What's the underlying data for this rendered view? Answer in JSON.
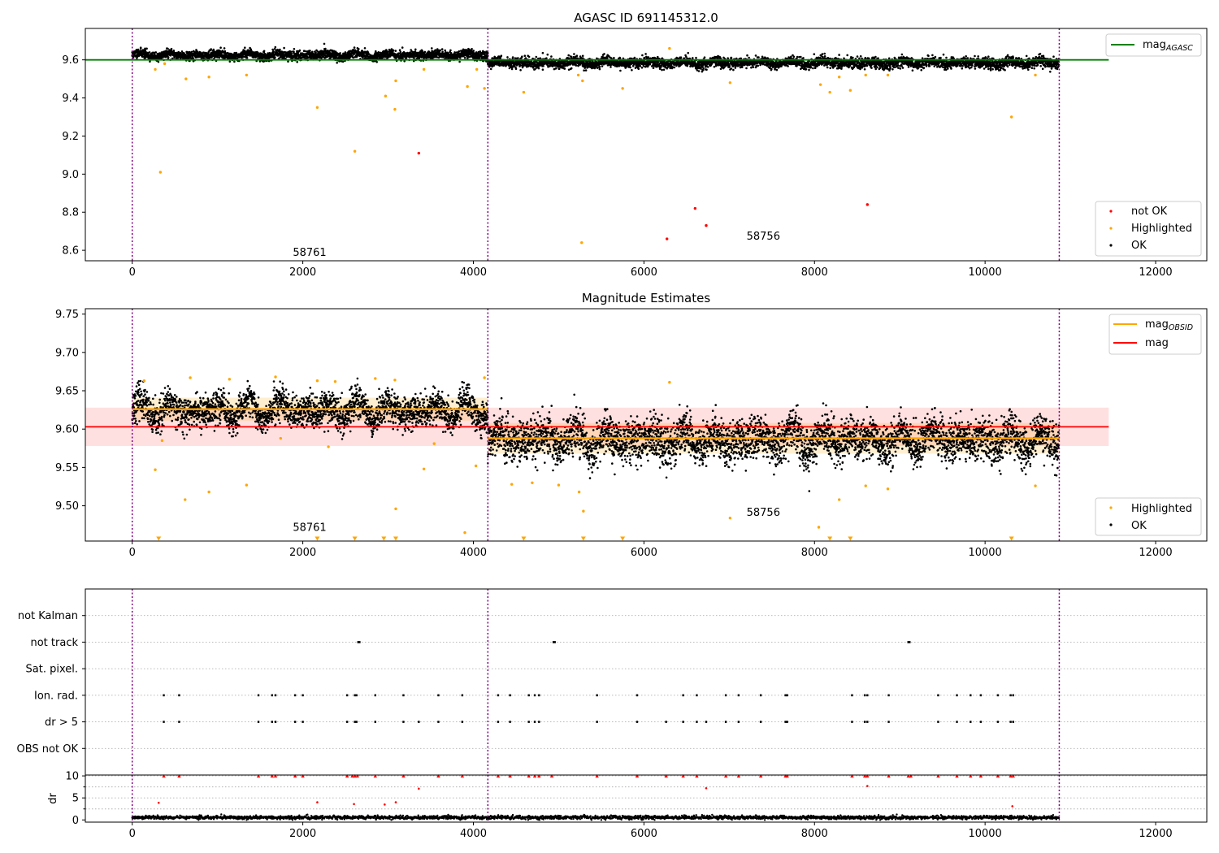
{
  "figure": {
    "background": "#ffffff"
  },
  "chart_data": [
    {
      "type": "scatter",
      "title": "AGASC ID 691145312.0",
      "xlabel": "",
      "ylabel": "",
      "xlim": [
        -550,
        12600
      ],
      "ylim": [
        8.545,
        9.765
      ],
      "x_ticks": [
        0,
        2000,
        4000,
        6000,
        8000,
        10000,
        12000
      ],
      "x_tick_labels": [
        "0",
        "2000",
        "4000",
        "6000",
        "8000",
        "10000",
        "12000"
      ],
      "y_ticks": [
        8.6,
        8.8,
        9.0,
        9.2,
        9.4,
        9.6
      ],
      "y_tick_labels": [
        "8.6",
        "8.8",
        "9.0",
        "9.2",
        "9.4",
        "9.6"
      ],
      "obs_boundaries": [
        0,
        4170,
        10870
      ],
      "obs_labels": [
        {
          "text": "58761",
          "x": 2080,
          "y": 8.57
        },
        {
          "text": "58756",
          "x": 7400,
          "y": 8.655
        }
      ],
      "reference_line": {
        "name": "mag",
        "subscript": "AGASC",
        "y": 9.6,
        "x_range": [
          -550,
          11450
        ],
        "color": "#008000"
      },
      "ok_bands": [
        {
          "x_range": [
            0,
            4170
          ],
          "center": 9.625,
          "spread": 0.026
        },
        {
          "x_range": [
            4170,
            10870
          ],
          "center": 9.585,
          "spread": 0.03
        }
      ],
      "highlighted": [
        {
          "x": 270,
          "y": 9.55
        },
        {
          "x": 330,
          "y": 9.01
        },
        {
          "x": 380,
          "y": 9.58
        },
        {
          "x": 630,
          "y": 9.5
        },
        {
          "x": 900,
          "y": 9.51
        },
        {
          "x": 1340,
          "y": 9.52
        },
        {
          "x": 2170,
          "y": 9.35
        },
        {
          "x": 2610,
          "y": 9.12
        },
        {
          "x": 2970,
          "y": 9.41
        },
        {
          "x": 3080,
          "y": 9.34
        },
        {
          "x": 3090,
          "y": 9.49
        },
        {
          "x": 3420,
          "y": 9.55
        },
        {
          "x": 3930,
          "y": 9.46
        },
        {
          "x": 4040,
          "y": 9.55
        },
        {
          "x": 4130,
          "y": 9.45
        },
        {
          "x": 4590,
          "y": 9.43
        },
        {
          "x": 5230,
          "y": 9.52
        },
        {
          "x": 5270,
          "y": 8.64
        },
        {
          "x": 5280,
          "y": 9.49
        },
        {
          "x": 5750,
          "y": 9.45
        },
        {
          "x": 6300,
          "y": 9.66
        },
        {
          "x": 7010,
          "y": 9.48
        },
        {
          "x": 8070,
          "y": 9.47
        },
        {
          "x": 8180,
          "y": 9.43
        },
        {
          "x": 8290,
          "y": 9.51
        },
        {
          "x": 8420,
          "y": 9.44
        },
        {
          "x": 8600,
          "y": 9.52
        },
        {
          "x": 8860,
          "y": 9.52
        },
        {
          "x": 10310,
          "y": 9.3
        },
        {
          "x": 10590,
          "y": 9.52
        }
      ],
      "not_ok": [
        {
          "x": 3360,
          "y": 9.11
        },
        {
          "x": 6270,
          "y": 8.66
        },
        {
          "x": 6600,
          "y": 8.82
        },
        {
          "x": 6730,
          "y": 8.73
        },
        {
          "x": 8620,
          "y": 8.84
        }
      ],
      "series": [
        {
          "name": "not OK",
          "color": "#ff0000"
        },
        {
          "name": "Highlighted",
          "color": "#ffa500"
        },
        {
          "name": "OK",
          "color": "#000000"
        }
      ],
      "legends": [
        {
          "placement": "top-right",
          "entries": [
            {
              "label": "mag",
              "subscript": "AGASC",
              "color": "#008000",
              "kind": "line"
            }
          ]
        },
        {
          "placement": "bottom-right",
          "entries": [
            {
              "label": "not OK",
              "color": "#ff0000",
              "kind": "marker"
            },
            {
              "label": "Highlighted",
              "color": "#ffa500",
              "kind": "marker"
            },
            {
              "label": "OK",
              "color": "#000000",
              "kind": "marker"
            }
          ]
        }
      ],
      "grid": false
    },
    {
      "type": "scatter",
      "title": "Magnitude Estimates",
      "xlabel": "",
      "ylabel": "",
      "xlim": [
        -550,
        12600
      ],
      "ylim": [
        9.454,
        9.757
      ],
      "x_ticks": [
        0,
        2000,
        4000,
        6000,
        8000,
        10000,
        12000
      ],
      "x_tick_labels": [
        "0",
        "2000",
        "4000",
        "6000",
        "8000",
        "10000",
        "12000"
      ],
      "y_ticks": [
        9.5,
        9.55,
        9.6,
        9.65,
        9.7,
        9.75
      ],
      "y_tick_labels": [
        "9.50",
        "9.55",
        "9.60",
        "9.65",
        "9.70",
        "9.75"
      ],
      "obs_boundaries": [
        0,
        4170,
        10870
      ],
      "obs_labels": [
        {
          "text": "58761",
          "x": 2080,
          "y": 9.467
        },
        {
          "text": "58756",
          "x": 7400,
          "y": 9.487
        }
      ],
      "mag_line": {
        "name": "mag",
        "y": 9.603,
        "band": [
          9.578,
          9.628
        ],
        "x_range": [
          -550,
          11450
        ],
        "color": "#ff0000",
        "band_color": "#ffe0e0"
      },
      "obsid_lines": [
        {
          "name": "mag",
          "subscript": "OBSID",
          "x_range": [
            0,
            4170
          ],
          "y": 9.626,
          "band": [
            9.611,
            9.641
          ],
          "color": "#ffa500"
        },
        {
          "name": "mag",
          "subscript": "OBSID",
          "x_range": [
            4170,
            10870
          ],
          "y": 9.588,
          "band": [
            9.568,
            9.608
          ],
          "color": "#ffa500"
        }
      ],
      "ok_bands": [
        {
          "x_range": [
            0,
            4170
          ],
          "center": 9.624,
          "spread": 0.024
        },
        {
          "x_range": [
            4170,
            10870
          ],
          "center": 9.586,
          "spread": 0.03
        }
      ],
      "highlighted": [
        {
          "x": 140,
          "y": 9.663
        },
        {
          "x": 270,
          "y": 9.547
        },
        {
          "x": 350,
          "y": 9.585
        },
        {
          "x": 620,
          "y": 9.508
        },
        {
          "x": 680,
          "y": 9.667
        },
        {
          "x": 900,
          "y": 9.518
        },
        {
          "x": 1140,
          "y": 9.665
        },
        {
          "x": 1340,
          "y": 9.527
        },
        {
          "x": 1680,
          "y": 9.668
        },
        {
          "x": 1740,
          "y": 9.588
        },
        {
          "x": 2170,
          "y": 9.663
        },
        {
          "x": 2300,
          "y": 9.577
        },
        {
          "x": 2380,
          "y": 9.662
        },
        {
          "x": 2850,
          "y": 9.666
        },
        {
          "x": 3080,
          "y": 9.664
        },
        {
          "x": 3090,
          "y": 9.496
        },
        {
          "x": 3420,
          "y": 9.548
        },
        {
          "x": 3540,
          "y": 9.581
        },
        {
          "x": 3900,
          "y": 9.465
        },
        {
          "x": 4030,
          "y": 9.552
        },
        {
          "x": 4130,
          "y": 9.667
        },
        {
          "x": 4450,
          "y": 9.528
        },
        {
          "x": 4690,
          "y": 9.53
        },
        {
          "x": 5000,
          "y": 9.527
        },
        {
          "x": 5240,
          "y": 9.518
        },
        {
          "x": 5290,
          "y": 9.493
        },
        {
          "x": 6300,
          "y": 9.661
        },
        {
          "x": 7010,
          "y": 9.484
        },
        {
          "x": 8050,
          "y": 9.472
        },
        {
          "x": 8290,
          "y": 9.508
        },
        {
          "x": 8600,
          "y": 9.526
        },
        {
          "x": 8860,
          "y": 9.522
        },
        {
          "x": 10590,
          "y": 9.526
        }
      ],
      "clipped_low": [
        310,
        2170,
        2610,
        2950,
        3090,
        4590,
        5290,
        5750,
        8180,
        8420,
        10310
      ],
      "series": [
        {
          "name": "Highlighted",
          "color": "#ffa500"
        },
        {
          "name": "OK",
          "color": "#000000"
        }
      ],
      "legends": [
        {
          "placement": "top-right",
          "entries": [
            {
              "label": "mag",
              "subscript": "OBSID",
              "color": "#ffa500",
              "kind": "line"
            },
            {
              "label": "mag",
              "subscript": "",
              "color": "#ff0000",
              "kind": "line"
            }
          ]
        },
        {
          "placement": "bottom-right",
          "entries": [
            {
              "label": "Highlighted",
              "color": "#ffa500",
              "kind": "marker"
            },
            {
              "label": "OK",
              "color": "#000000",
              "kind": "marker"
            }
          ]
        }
      ],
      "grid": false
    },
    {
      "type": "scatter",
      "title": "",
      "xlabel": "",
      "ylabel": "",
      "xlim": [
        -550,
        12600
      ],
      "categories": [
        "not Kalman",
        "not track",
        "Sat. pixel.",
        "Ion. rad.",
        "dr > 5",
        "OBS not OK"
      ],
      "obs_boundaries": [
        0,
        4170,
        10870
      ],
      "grid": true,
      "flags": {
        "not track": [
          2650,
          4940,
          9100
        ],
        "Ion. rad.": [
          370,
          550,
          1480,
          1640,
          1680,
          1910,
          2000,
          2520,
          2610,
          2630,
          2850,
          3180,
          3590,
          3870,
          4290,
          4430,
          4650,
          4720,
          4770,
          5450,
          5920,
          6460,
          6620,
          6960,
          7110,
          7370,
          7660,
          7680,
          8440,
          8590,
          8620,
          8870,
          9450,
          9670,
          9830,
          9950,
          10150,
          10300,
          10330
        ],
        "dr > 5": [
          370,
          550,
          1480,
          1640,
          1680,
          1910,
          2000,
          2520,
          2610,
          2630,
          2850,
          3180,
          3360,
          3590,
          3870,
          4290,
          4430,
          4650,
          4720,
          4770,
          5450,
          5920,
          6260,
          6460,
          6620,
          6730,
          6960,
          7110,
          7370,
          7660,
          7680,
          8440,
          8590,
          8620,
          8870,
          9450,
          9670,
          9830,
          9950,
          10150,
          10300,
          10330
        ]
      }
    },
    {
      "type": "scatter",
      "title": "",
      "xlabel": "",
      "ylabel": "dr",
      "xlim": [
        -550,
        12600
      ],
      "ylim": [
        -0.5,
        10.2
      ],
      "x_ticks": [
        0,
        2000,
        4000,
        6000,
        8000,
        10000,
        12000
      ],
      "x_tick_labels": [
        "0",
        "2000",
        "4000",
        "6000",
        "8000",
        "10000",
        "12000"
      ],
      "y_ticks": [
        0,
        5,
        10
      ],
      "y_tick_labels": [
        "0",
        "5",
        "10"
      ],
      "obs_boundaries": [
        0,
        4170,
        10870
      ],
      "grid": true,
      "clipped_high": [
        370,
        550,
        1480,
        1640,
        1680,
        1910,
        2000,
        2520,
        2580,
        2610,
        2640,
        2850,
        3180,
        3590,
        3870,
        4290,
        4430,
        4650,
        4720,
        4770,
        4920,
        5450,
        5920,
        6260,
        6460,
        6620,
        6960,
        7110,
        7370,
        7660,
        7680,
        8440,
        8590,
        8620,
        8870,
        9100,
        9130,
        9450,
        9670,
        9830,
        9950,
        10150,
        10300,
        10330
      ],
      "red_points": [
        {
          "x": 310,
          "y": 3.9
        },
        {
          "x": 2170,
          "y": 4.0
        },
        {
          "x": 2600,
          "y": 3.6
        },
        {
          "x": 2960,
          "y": 3.5
        },
        {
          "x": 3090,
          "y": 4.0
        },
        {
          "x": 3360,
          "y": 7.1
        },
        {
          "x": 6730,
          "y": 7.2
        },
        {
          "x": 8620,
          "y": 7.7
        },
        {
          "x": 10320,
          "y": 3.1
        }
      ],
      "ok_band": {
        "x_range": [
          0,
          10870
        ],
        "center": 0.55,
        "spread": 0.35
      }
    }
  ]
}
